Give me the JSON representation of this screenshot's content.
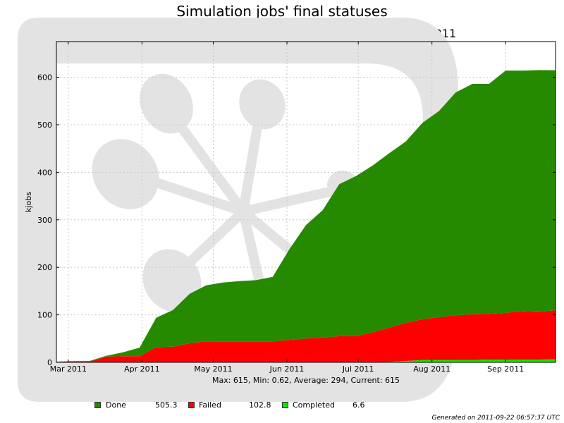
{
  "header": {
    "title": "Simulation jobs' final statuses",
    "subtitle": "29 Weeks from Week 08 of 2011 to Week 37 of 2011"
  },
  "stats": "Max: 615, Min: 0.62, Average: 294, Current: 615",
  "legend": [
    {
      "label": "Done",
      "value": "505.3",
      "color": "#268a00"
    },
    {
      "label": "Failed",
      "value": "102.8",
      "color": "#ff0000"
    },
    {
      "label": "Completed",
      "value": "6.6",
      "color": "#00ee00"
    }
  ],
  "footer": "Generated on 2011-09-22 06:57:37 UTC",
  "chart_data": {
    "type": "area",
    "stacked": true,
    "cumulative": true,
    "title": "29 Weeks from Week 08 of 2011 to Week 37 of 2011",
    "ylabel": "kjobs",
    "xlabel": "",
    "ylim": [
      0,
      675
    ],
    "xlim": [
      "2011-02-24",
      "2011-09-22"
    ],
    "x_ticks": [
      {
        "date": "2011-03-01",
        "label": "Mar 2011"
      },
      {
        "date": "2011-04-01",
        "label": "Apr 2011"
      },
      {
        "date": "2011-05-01",
        "label": "May 2011"
      },
      {
        "date": "2011-06-01",
        "label": "Jun 2011"
      },
      {
        "date": "2011-07-01",
        "label": "Jul 2011"
      },
      {
        "date": "2011-08-01",
        "label": "Aug 2011"
      },
      {
        "date": "2011-09-01",
        "label": "Sep 2011"
      }
    ],
    "y_ticks": [
      0,
      100,
      200,
      300,
      400,
      500,
      600
    ],
    "grid": true,
    "x": [
      "2011-02-24",
      "2011-03-03",
      "2011-03-10",
      "2011-03-17",
      "2011-03-24",
      "2011-03-31",
      "2011-04-07",
      "2011-04-14",
      "2011-04-21",
      "2011-04-28",
      "2011-05-05",
      "2011-05-12",
      "2011-05-19",
      "2011-05-26",
      "2011-06-02",
      "2011-06-09",
      "2011-06-16",
      "2011-06-23",
      "2011-06-30",
      "2011-07-07",
      "2011-07-14",
      "2011-07-21",
      "2011-07-28",
      "2011-08-04",
      "2011-08-11",
      "2011-08-18",
      "2011-08-25",
      "2011-09-01",
      "2011-09-08",
      "2011-09-15",
      "2011-09-22"
    ],
    "series": [
      {
        "name": "Completed",
        "color": "#00ee00",
        "values": [
          0,
          0,
          0,
          0,
          0,
          0,
          0,
          0,
          0,
          0,
          0,
          0,
          0,
          0,
          0,
          0,
          0,
          0,
          0,
          0,
          1,
          3,
          5,
          5,
          5,
          5,
          6,
          6,
          6,
          6,
          6.6
        ]
      },
      {
        "name": "Failed",
        "color": "#ff0000",
        "values": [
          1,
          1.5,
          2,
          12,
          13,
          13,
          32,
          33,
          40,
          44,
          44,
          44,
          44,
          44,
          47,
          50,
          52,
          55,
          55,
          63,
          72,
          80,
          86,
          90,
          94,
          96,
          96,
          98,
          102,
          101,
          102.8
        ]
      },
      {
        "name": "Done",
        "color": "#268a00",
        "values": [
          0.62,
          1,
          1,
          2,
          8,
          18,
          62,
          77,
          104,
          118,
          124,
          127,
          129,
          136,
          191,
          239,
          268,
          320,
          337,
          351,
          367,
          382,
          413,
          434,
          469,
          485,
          484,
          510,
          506,
          508,
          505.3
        ]
      }
    ]
  }
}
